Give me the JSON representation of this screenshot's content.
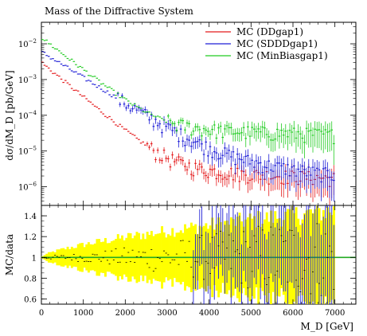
{
  "chart_data": [
    {
      "type": "scatter",
      "panel": "main",
      "title": "Mass of the Diffractive System",
      "ylabel": "dσ/dM_D [pb/GeV]",
      "xlim": [
        0,
        7500
      ],
      "ylim": [
        3e-07,
        0.04
      ],
      "yscale": "log",
      "x_ticks": [
        0,
        1000,
        2000,
        3000,
        4000,
        5000,
        6000,
        7000
      ],
      "x_tick_labels": [
        "0",
        "1000",
        "2000",
        "3000",
        "4000",
        "5000",
        "6000",
        "7000"
      ],
      "y_ticks": [
        1e-06,
        1e-05,
        0.0001,
        0.001,
        0.01
      ],
      "y_tick_labels": [
        {
          "base": "10",
          "exp": "−6"
        },
        {
          "base": "10",
          "exp": "−5"
        },
        {
          "base": "10",
          "exp": "−4"
        },
        {
          "base": "10",
          "exp": "−3"
        },
        {
          "base": "10",
          "exp": "−2"
        }
      ],
      "legend_position": "top-right",
      "series": [
        {
          "name": "MC (DDgap1)",
          "color": "#e41a1c",
          "x_start": 0,
          "x_end": 7000,
          "n_points": 140,
          "shape": "decay",
          "start_value": 0.003,
          "plateau": 4e-06,
          "decay_scale": 450,
          "tail_slope": 0.00012,
          "errors_from": 2500
        },
        {
          "name": "MC (SDDDgap1)",
          "color": "#1f1fd6",
          "x_start": 0,
          "x_end": 7000,
          "n_points": 140,
          "shape": "decay",
          "start_value": 0.006,
          "plateau": 1.5e-05,
          "decay_scale": 600,
          "tail_slope": 0.00028,
          "errors_from": 1800
        },
        {
          "name": "MC (MinBiasgap1)",
          "color": "#22cc22",
          "x_start": 0,
          "x_end": 7000,
          "n_points": 140,
          "shape": "decay",
          "start_value": 0.015,
          "plateau": 5e-05,
          "decay_scale": 480,
          "tail_slope": 8e-05,
          "errors_from": 3000
        }
      ]
    },
    {
      "type": "scatter",
      "panel": "ratio",
      "xlabel": "M_D [GeV]",
      "ylabel": "MC/data",
      "xlim": [
        0,
        7500
      ],
      "ylim": [
        0.55,
        1.5
      ],
      "y_ticks": [
        0.6,
        0.8,
        1.0,
        1.2,
        1.4
      ],
      "y_tick_labels": [
        "0.6",
        "0.8",
        "1",
        "1.2",
        "1.4"
      ],
      "x_ticks": [
        0,
        1000,
        2000,
        3000,
        4000,
        5000,
        6000,
        7000
      ],
      "x_tick_labels": [
        "0",
        "1000",
        "2000",
        "3000",
        "4000",
        "5000",
        "6000",
        "7000"
      ],
      "reference_line": 1.0,
      "reference_color": "#22aa22",
      "band_color": "#ffff00",
      "band_halfwidth_start": 0.01,
      "band_halfwidth_end": 0.45,
      "series_color": "#1f1fd6"
    }
  ]
}
